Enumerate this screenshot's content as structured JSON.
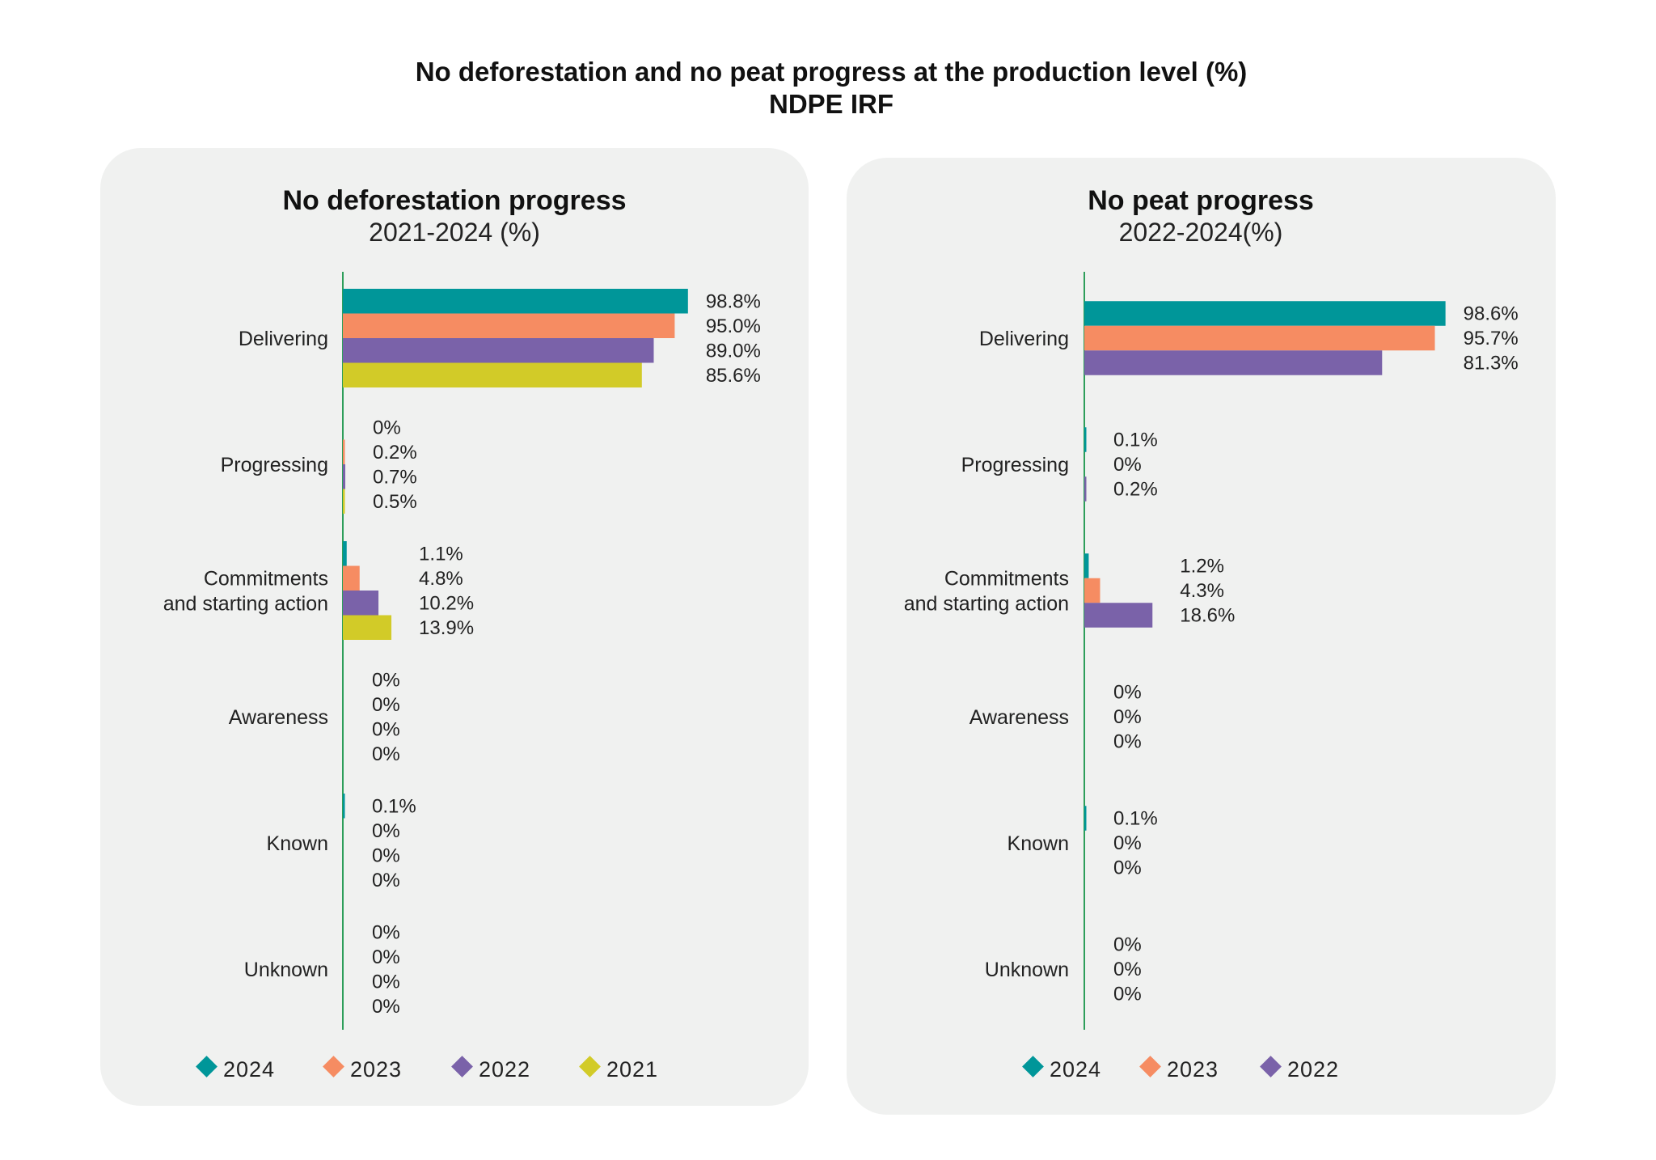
{
  "header": {
    "title": "No deforestation and no peat progress at the production level (%)",
    "subtitle": "NDPE IRF"
  },
  "colors": {
    "2024": "#009699",
    "2023": "#F68C62",
    "2022": "#7A62A9",
    "2021": "#D2CB28",
    "axis": "#2E9E5A",
    "panel": "#F0F1F0"
  },
  "chart_data": [
    {
      "type": "bar",
      "orientation": "horizontal",
      "title": "No deforestation progress",
      "subtitle": "2021-2024 (%)",
      "categories": [
        "Delivering",
        "Progressing",
        "Commitments and starting action",
        "Awareness",
        "Known",
        "Unknown"
      ],
      "category_lines": [
        [
          "Delivering"
        ],
        [
          "Progressing"
        ],
        [
          "Commitments",
          "and starting action"
        ],
        [
          "Awareness"
        ],
        [
          "Known"
        ],
        [
          "Unknown"
        ]
      ],
      "series": [
        {
          "name": "2024",
          "values": [
            98.8,
            0,
            1.1,
            0,
            0.1,
            0
          ],
          "labels": [
            "98.8%",
            "0%",
            "1.1%",
            "0%",
            "0.1%",
            "0%"
          ]
        },
        {
          "name": "2023",
          "values": [
            95.0,
            0.2,
            4.8,
            0,
            0,
            0
          ],
          "labels": [
            "95.0%",
            "0.2%",
            "4.8%",
            "0%",
            "0%",
            "0%"
          ]
        },
        {
          "name": "2022",
          "values": [
            89.0,
            0.7,
            10.2,
            0,
            0,
            0
          ],
          "labels": [
            "89.0%",
            "0.7%",
            "10.2%",
            "0%",
            "0%",
            "0%"
          ]
        },
        {
          "name": "2021",
          "values": [
            85.6,
            0.5,
            13.9,
            0,
            0,
            0
          ],
          "labels": [
            "85.6%",
            "0.5%",
            "13.9%",
            "0%",
            "0%",
            "0%"
          ]
        }
      ],
      "xlim": [
        0,
        100
      ],
      "grid": false,
      "legend": "bottom"
    },
    {
      "type": "bar",
      "orientation": "horizontal",
      "title": "No peat progress",
      "subtitle": "2022-2024(%)",
      "categories": [
        "Delivering",
        "Progressing",
        "Commitments and starting action",
        "Awareness",
        "Known",
        "Unknown"
      ],
      "category_lines": [
        [
          "Delivering"
        ],
        [
          "Progressing"
        ],
        [
          "Commitments",
          "and starting action"
        ],
        [
          "Awareness"
        ],
        [
          "Known"
        ],
        [
          "Unknown"
        ]
      ],
      "series": [
        {
          "name": "2024",
          "values": [
            98.6,
            0.1,
            1.2,
            0,
            0.1,
            0
          ],
          "labels": [
            "98.6%",
            "0.1%",
            "1.2%",
            "0%",
            "0.1%",
            "0%"
          ]
        },
        {
          "name": "2023",
          "values": [
            95.7,
            0,
            4.3,
            0,
            0,
            0
          ],
          "labels": [
            "95.7%",
            "0%",
            "4.3%",
            "0%",
            "0%",
            "0%"
          ]
        },
        {
          "name": "2022",
          "values": [
            81.3,
            0.2,
            18.6,
            0,
            0,
            0
          ],
          "labels": [
            "81.3%",
            "0.2%",
            "18.6%",
            "0%",
            "0%",
            "0%"
          ]
        }
      ],
      "xlim": [
        0,
        100
      ],
      "grid": false,
      "legend": "bottom"
    }
  ]
}
